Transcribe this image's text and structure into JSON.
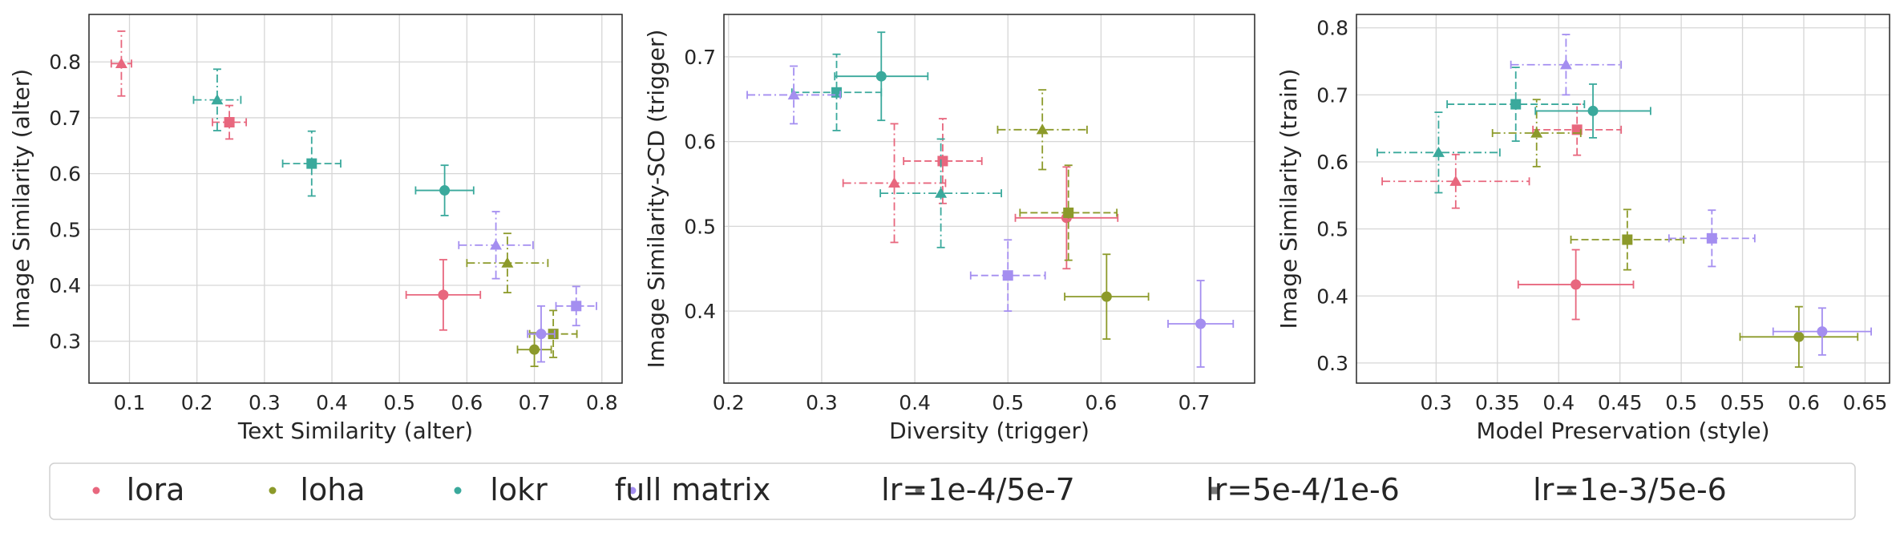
{
  "colors": {
    "lora": "#e8677e",
    "loha": "#8c9a2a",
    "lokr": "#3aa99c",
    "full_matrix": "#a48ef0",
    "neutral": "#7a7a7a"
  },
  "legend": {
    "placement": "bottom",
    "entries": [
      {
        "label": "lora",
        "marker": "circle",
        "color_key": "lora"
      },
      {
        "label": "loha",
        "marker": "circle",
        "color_key": "loha"
      },
      {
        "label": "lokr",
        "marker": "circle",
        "color_key": "lokr"
      },
      {
        "label": "full matrix",
        "marker": "circle",
        "color_key": "full_matrix"
      },
      {
        "label": "lr=1e-4/5e-7",
        "marker": "circle",
        "color_key": "neutral"
      },
      {
        "label": "lr=5e-4/1e-6",
        "marker": "square",
        "color_key": "neutral"
      },
      {
        "label": "lr=1e-3/5e-6",
        "marker": "triangle",
        "color_key": "neutral"
      }
    ]
  },
  "chart_data": [
    {
      "type": "scatter",
      "xlabel": "Text Similarity (alter)",
      "ylabel": "Image Similarity (alter)",
      "xlim": [
        0.04,
        0.83
      ],
      "ylim": [
        0.225,
        0.885
      ],
      "xticks": [
        0.1,
        0.2,
        0.3,
        0.4,
        0.5,
        0.6,
        0.7,
        0.8
      ],
      "yticks": [
        0.3,
        0.4,
        0.5,
        0.6,
        0.7,
        0.8
      ],
      "grid": true,
      "points": [
        {
          "algo": "lora",
          "lr": "lr=1e-4/5e-7",
          "x": 0.565,
          "y": 0.383,
          "xerr": 0.055,
          "yerr": 0.063
        },
        {
          "algo": "lora",
          "lr": "lr=5e-4/1e-6",
          "x": 0.248,
          "y": 0.692,
          "xerr": 0.025,
          "yerr": 0.03
        },
        {
          "algo": "lora",
          "lr": "lr=1e-3/5e-6",
          "x": 0.088,
          "y": 0.797,
          "xerr": 0.015,
          "yerr": 0.058
        },
        {
          "algo": "loha",
          "lr": "lr=1e-4/5e-7",
          "x": 0.7,
          "y": 0.285,
          "xerr": 0.025,
          "yerr": 0.03
        },
        {
          "algo": "loha",
          "lr": "lr=5e-4/1e-6",
          "x": 0.728,
          "y": 0.313,
          "xerr": 0.035,
          "yerr": 0.042
        },
        {
          "algo": "loha",
          "lr": "lr=1e-3/5e-6",
          "x": 0.66,
          "y": 0.44,
          "xerr": 0.06,
          "yerr": 0.053
        },
        {
          "algo": "lokr",
          "lr": "lr=1e-4/5e-7",
          "x": 0.567,
          "y": 0.57,
          "xerr": 0.043,
          "yerr": 0.045
        },
        {
          "algo": "lokr",
          "lr": "lr=5e-4/1e-6",
          "x": 0.37,
          "y": 0.618,
          "xerr": 0.043,
          "yerr": 0.058
        },
        {
          "algo": "lokr",
          "lr": "lr=1e-3/5e-6",
          "x": 0.23,
          "y": 0.732,
          "xerr": 0.035,
          "yerr": 0.055
        },
        {
          "algo": "full_matrix",
          "lr": "lr=1e-4/5e-7",
          "x": 0.71,
          "y": 0.313,
          "xerr": 0.02,
          "yerr": 0.05
        },
        {
          "algo": "full_matrix",
          "lr": "lr=5e-4/1e-6",
          "x": 0.762,
          "y": 0.363,
          "xerr": 0.03,
          "yerr": 0.035
        },
        {
          "algo": "full_matrix",
          "lr": "lr=1e-3/5e-6",
          "x": 0.643,
          "y": 0.472,
          "xerr": 0.055,
          "yerr": 0.06
        }
      ]
    },
    {
      "type": "scatter",
      "xlabel": "Diversity (trigger)",
      "ylabel": "Image Similarity-SCD (trigger)",
      "xlim": [
        0.195,
        0.765
      ],
      "ylim": [
        0.315,
        0.75
      ],
      "xticks": [
        0.2,
        0.3,
        0.4,
        0.5,
        0.6,
        0.7
      ],
      "yticks": [
        0.4,
        0.5,
        0.6,
        0.7
      ],
      "grid": true,
      "points": [
        {
          "algo": "lora",
          "lr": "lr=1e-4/5e-7",
          "x": 0.563,
          "y": 0.51,
          "xerr": 0.055,
          "yerr": 0.06
        },
        {
          "algo": "lora",
          "lr": "lr=5e-4/1e-6",
          "x": 0.43,
          "y": 0.577,
          "xerr": 0.042,
          "yerr": 0.05
        },
        {
          "algo": "lora",
          "lr": "lr=1e-3/5e-6",
          "x": 0.378,
          "y": 0.551,
          "xerr": 0.055,
          "yerr": 0.07
        },
        {
          "algo": "loha",
          "lr": "lr=1e-4/5e-7",
          "x": 0.606,
          "y": 0.417,
          "xerr": 0.045,
          "yerr": 0.05
        },
        {
          "algo": "loha",
          "lr": "lr=5e-4/1e-6",
          "x": 0.565,
          "y": 0.516,
          "xerr": 0.052,
          "yerr": 0.056
        },
        {
          "algo": "loha",
          "lr": "lr=1e-3/5e-6",
          "x": 0.537,
          "y": 0.614,
          "xerr": 0.048,
          "yerr": 0.047
        },
        {
          "algo": "lokr",
          "lr": "lr=1e-4/5e-7",
          "x": 0.364,
          "y": 0.677,
          "xerr": 0.05,
          "yerr": 0.052
        },
        {
          "algo": "lokr",
          "lr": "lr=5e-4/1e-6",
          "x": 0.316,
          "y": 0.658,
          "xerr": 0.048,
          "yerr": 0.045
        },
        {
          "algo": "lokr",
          "lr": "lr=1e-3/5e-6",
          "x": 0.428,
          "y": 0.539,
          "xerr": 0.065,
          "yerr": 0.064
        },
        {
          "algo": "full_matrix",
          "lr": "lr=1e-4/5e-7",
          "x": 0.707,
          "y": 0.385,
          "xerr": 0.035,
          "yerr": 0.051
        },
        {
          "algo": "full_matrix",
          "lr": "lr=5e-4/1e-6",
          "x": 0.5,
          "y": 0.442,
          "xerr": 0.04,
          "yerr": 0.042
        },
        {
          "algo": "full_matrix",
          "lr": "lr=1e-3/5e-6",
          "x": 0.27,
          "y": 0.655,
          "xerr": 0.05,
          "yerr": 0.034
        }
      ]
    },
    {
      "type": "scatter",
      "xlabel": "Model Preservation (style)",
      "ylabel": "Image Similarity (train)",
      "xlim": [
        0.235,
        0.67
      ],
      "ylim": [
        0.27,
        0.82
      ],
      "xticks": [
        0.3,
        0.35,
        0.4,
        0.45,
        0.5,
        0.55,
        0.6,
        0.65
      ],
      "yticks": [
        0.3,
        0.4,
        0.5,
        0.6,
        0.7,
        0.8
      ],
      "grid": true,
      "points": [
        {
          "algo": "lora",
          "lr": "lr=1e-4/5e-7",
          "x": 0.414,
          "y": 0.417,
          "xerr": 0.047,
          "yerr": 0.052
        },
        {
          "algo": "lora",
          "lr": "lr=5e-4/1e-6",
          "x": 0.415,
          "y": 0.648,
          "xerr": 0.036,
          "yerr": 0.038
        },
        {
          "algo": "lora",
          "lr": "lr=1e-3/5e-6",
          "x": 0.316,
          "y": 0.571,
          "xerr": 0.06,
          "yerr": 0.04
        },
        {
          "algo": "loha",
          "lr": "lr=1e-4/5e-7",
          "x": 0.596,
          "y": 0.339,
          "xerr": 0.048,
          "yerr": 0.045
        },
        {
          "algo": "loha",
          "lr": "lr=5e-4/1e-6",
          "x": 0.456,
          "y": 0.484,
          "xerr": 0.046,
          "yerr": 0.045
        },
        {
          "algo": "loha",
          "lr": "lr=1e-3/5e-6",
          "x": 0.382,
          "y": 0.643,
          "xerr": 0.036,
          "yerr": 0.05
        },
        {
          "algo": "lokr",
          "lr": "lr=1e-4/5e-7",
          "x": 0.428,
          "y": 0.676,
          "xerr": 0.047,
          "yerr": 0.04
        },
        {
          "algo": "lokr",
          "lr": "lr=5e-4/1e-6",
          "x": 0.365,
          "y": 0.686,
          "xerr": 0.056,
          "yerr": 0.055
        },
        {
          "algo": "lokr",
          "lr": "lr=1e-3/5e-6",
          "x": 0.302,
          "y": 0.614,
          "xerr": 0.05,
          "yerr": 0.06
        },
        {
          "algo": "full_matrix",
          "lr": "lr=1e-4/5e-7",
          "x": 0.615,
          "y": 0.347,
          "xerr": 0.04,
          "yerr": 0.035
        },
        {
          "algo": "full_matrix",
          "lr": "lr=5e-4/1e-6",
          "x": 0.525,
          "y": 0.486,
          "xerr": 0.035,
          "yerr": 0.042
        },
        {
          "algo": "full_matrix",
          "lr": "lr=1e-3/5e-6",
          "x": 0.406,
          "y": 0.745,
          "xerr": 0.045,
          "yerr": 0.045
        }
      ]
    }
  ]
}
